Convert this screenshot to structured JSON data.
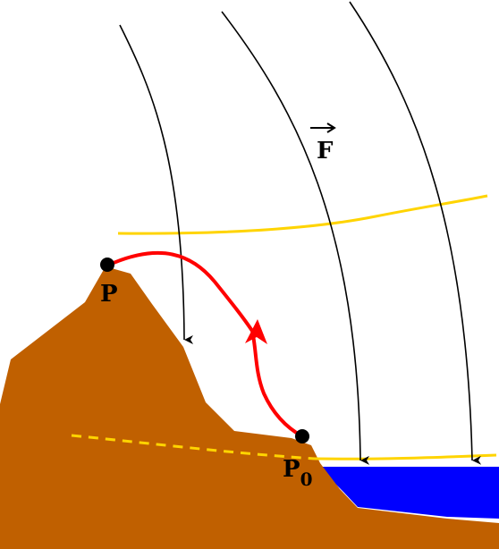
{
  "labels": {
    "force": "F",
    "point_p": "P",
    "point_p0_base": "P",
    "point_p0_sub": "0"
  },
  "colors": {
    "terrain": "#c06000",
    "water": "#0000ff",
    "path": "#ff0000",
    "equipotential": "#ffd400",
    "field_lines": "#000000",
    "points": "#000000"
  }
}
